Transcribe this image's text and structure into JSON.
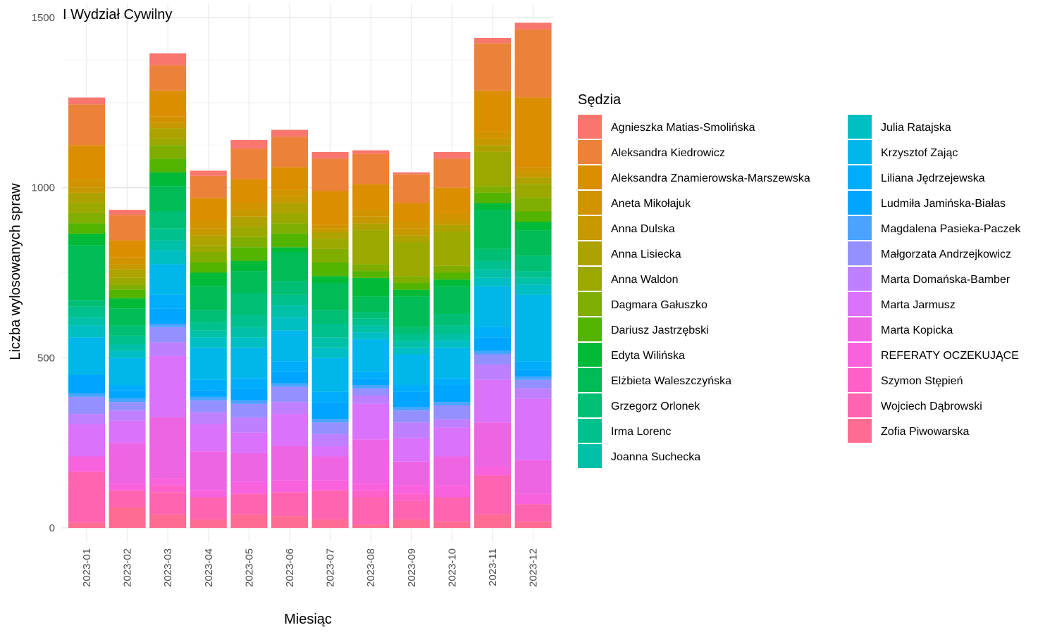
{
  "chart_data": {
    "type": "bar",
    "stacked": true,
    "title": "I Wydział Cywilny",
    "xlabel": "Miesiąc",
    "ylabel": "Liczba wylosowanych spraw",
    "ylim": [
      0,
      1500
    ],
    "y_ticks": [
      0,
      500,
      1000,
      1500
    ],
    "grid": true,
    "legend_title": "Sędzia",
    "legend_position": "right",
    "categories": [
      "2023-01",
      "2023-02",
      "2023-03",
      "2023-04",
      "2023-05",
      "2023-06",
      "2023-07",
      "2023-08",
      "2023-09",
      "2023-10",
      "2023-11",
      "2023-12"
    ],
    "series": [
      {
        "name": "Agnieszka Matias-Smolińska",
        "color": "#F8766D",
        "values": [
          20,
          15,
          35,
          15,
          25,
          20,
          20,
          10,
          5,
          20,
          15,
          20
        ]
      },
      {
        "name": "Aleksandra Kiedrowicz",
        "color": "#EC8239",
        "values": [
          120,
          75,
          75,
          65,
          90,
          90,
          95,
          90,
          85,
          85,
          140,
          200
        ]
      },
      {
        "name": "Aleksandra Znamierowska-Marszewska",
        "color": "#DB8E00",
        "values": [
          100,
          50,
          75,
          65,
          70,
          65,
          100,
          75,
          55,
          75,
          120,
          205
        ]
      },
      {
        "name": "Aneta Mikołajuk",
        "color": "#D19300",
        "values": [
          25,
          20,
          20,
          25,
          20,
          20,
          10,
          20,
          20,
          20,
          20,
          15
        ]
      },
      {
        "name": "Anna Dulska",
        "color": "#C79800",
        "values": [
          15,
          15,
          15,
          20,
          20,
          20,
          10,
          20,
          20,
          15,
          20,
          15
        ]
      },
      {
        "name": "Anna Lisiecka",
        "color": "#AEA200",
        "values": [
          30,
          25,
          30,
          30,
          30,
          30,
          20,
          20,
          20,
          20,
          20,
          20
        ]
      },
      {
        "name": "Anna Waldon",
        "color": "#9AA800",
        "values": [
          30,
          20,
          20,
          20,
          30,
          30,
          30,
          100,
          100,
          100,
          100,
          40
        ]
      },
      {
        "name": "Dagmara Gałuszko",
        "color": "#7FAE00",
        "values": [
          30,
          15,
          40,
          30,
          30,
          30,
          40,
          20,
          20,
          20,
          20,
          40
        ]
      },
      {
        "name": "Dariusz Jastrzębski",
        "color": "#53B400",
        "values": [
          30,
          25,
          40,
          30,
          40,
          40,
          40,
          20,
          20,
          20,
          30,
          30
        ]
      },
      {
        "name": "Edyta Wilińska",
        "color": "#00BA38",
        "values": [
          35,
          30,
          40,
          40,
          30,
          15,
          20,
          55,
          20,
          20,
          20,
          25
        ]
      },
      {
        "name": "Elżbieta Waleszczyńska",
        "color": "#00BC56",
        "values": [
          160,
          50,
          75,
          70,
          65,
          85,
          80,
          45,
          90,
          80,
          115,
          75
        ]
      },
      {
        "name": "Grzegorz Orlonek",
        "color": "#00BF74",
        "values": [
          20,
          30,
          50,
          35,
          65,
          40,
          40,
          20,
          20,
          35,
          35,
          45
        ]
      },
      {
        "name": "Irma Lorenc",
        "color": "#00C08D",
        "values": [
          30,
          25,
          35,
          25,
          35,
          30,
          40,
          20,
          20,
          25,
          25,
          20
        ]
      },
      {
        "name": "Joanna Suchecka",
        "color": "#00C1A7",
        "values": [
          25,
          20,
          30,
          20,
          30,
          35,
          30,
          20,
          20,
          20,
          25,
          20
        ]
      },
      {
        "name": "Julia Ratajska",
        "color": "#00BFC4",
        "values": [
          35,
          20,
          40,
          30,
          30,
          40,
          30,
          20,
          20,
          20,
          25,
          30
        ]
      },
      {
        "name": "Krzysztof Zając",
        "color": "#00B6EB",
        "values": [
          110,
          80,
          90,
          95,
          90,
          90,
          100,
          95,
          90,
          90,
          120,
          195
        ]
      },
      {
        "name": "Liliana Jędrzejewska",
        "color": "#00ADFA",
        "values": [
          0,
          15,
          40,
          30,
          30,
          30,
          30,
          20,
          20,
          20,
          30,
          25
        ]
      },
      {
        "name": "Ludmiła Jamińska-Białas",
        "color": "#00A5FF",
        "values": [
          55,
          25,
          45,
          20,
          35,
          35,
          50,
          20,
          45,
          50,
          40,
          20
        ]
      },
      {
        "name": "Magdalena Pasieka-Paczek",
        "color": "#4AA4FF",
        "values": [
          10,
          10,
          10,
          10,
          10,
          10,
          10,
          10,
          10,
          10,
          10,
          10
        ]
      },
      {
        "name": "Małgorzata Andrzejkowicz",
        "color": "#9590FF",
        "values": [
          50,
          25,
          45,
          35,
          40,
          45,
          35,
          20,
          35,
          40,
          30,
          25
        ]
      },
      {
        "name": "Marta Domańska-Bamber",
        "color": "#BF80FF",
        "values": [
          30,
          30,
          40,
          35,
          45,
          35,
          35,
          25,
          45,
          25,
          45,
          30
        ]
      },
      {
        "name": "Marta Jarmusz",
        "color": "#DB72FB",
        "values": [
          95,
          65,
          180,
          80,
          60,
          95,
          30,
          105,
          70,
          85,
          125,
          180
        ]
      },
      {
        "name": "Marta Kopicka",
        "color": "#EE65E3",
        "values": [
          0,
          120,
          180,
          115,
          85,
          100,
          70,
          130,
          70,
          85,
          130,
          100
        ]
      },
      {
        "name": "REFERATY OCZEKUJĄCE",
        "color": "#F962DD",
        "values": [
          45,
          20,
          20,
          20,
          35,
          35,
          30,
          20,
          25,
          35,
          25,
          30
        ]
      },
      {
        "name": "Szymon Stępień",
        "color": "#FF61C9",
        "values": [
          0,
          0,
          20,
          0,
          0,
          0,
          0,
          20,
          20,
          0,
          0,
          0
        ]
      },
      {
        "name": "Wojciech Dąbrowski",
        "color": "#FF64B0",
        "values": [
          150,
          50,
          65,
          65,
          60,
          70,
          85,
          80,
          55,
          70,
          115,
          50
        ]
      },
      {
        "name": "Zofia Piwowarska",
        "color": "#FF6C92",
        "values": [
          15,
          60,
          40,
          25,
          40,
          35,
          25,
          10,
          25,
          20,
          40,
          20
        ]
      }
    ]
  }
}
